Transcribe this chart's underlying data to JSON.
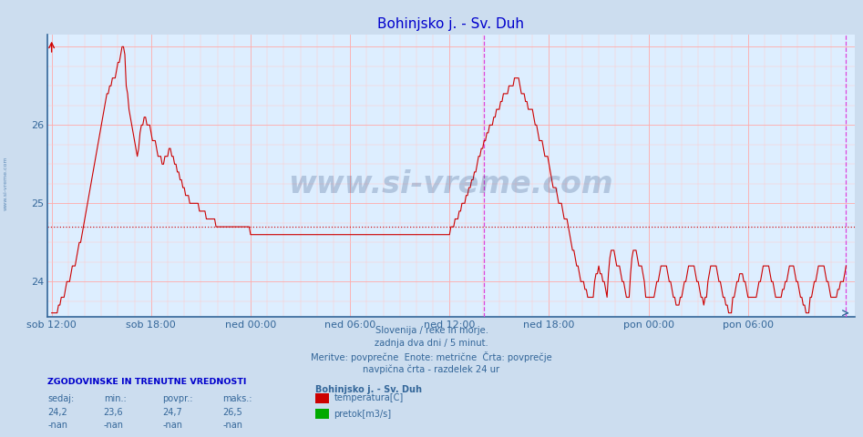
{
  "title": "Bohinjsko j. - Sv. Duh",
  "title_color": "#0000cc",
  "bg_color": "#ccddef",
  "plot_bg_color": "#ddeeff",
  "line_color": "#cc0000",
  "avg_line_color": "#cc0000",
  "avg_value": 24.7,
  "vline_color": "#dd44dd",
  "grid_color_major": "#ffaaaa",
  "grid_color_minor": "#ffcccc",
  "ymin": 23.55,
  "ymax": 27.15,
  "yticks": [
    24,
    25,
    26
  ],
  "tick_label_color": "#336699",
  "xtick_labels": [
    "sob 12:00",
    "sob 18:00",
    "ned 00:00",
    "ned 06:00",
    "ned 12:00",
    "ned 18:00",
    "pon 00:00",
    "pon 06:00"
  ],
  "footer_lines": [
    "Slovenija / reke in morje.",
    "zadnja dva dni / 5 minut.",
    "Meritve: povprečne  Enote: metrične  Črta: povprečje",
    "navpična črta - razdelek 24 ur"
  ],
  "watermark": "www.si-vreme.com",
  "watermark_color": "#1a3a6e",
  "watermark_alpha": 0.22,
  "sidebar_text": "www.si-vreme.com",
  "legend_station": "Bohinjsko j. - Sv. Duh",
  "legend_items": [
    {
      "label": "temperatura[C]",
      "color": "#cc0000"
    },
    {
      "label": "pretok[m3/s]",
      "color": "#00aa00"
    }
  ],
  "stats_headers": [
    "sedaj:",
    "min.:",
    "povpr.:",
    "maks.:"
  ],
  "stats_temp": [
    "24,2",
    "23,6",
    "24,7",
    "26,5"
  ],
  "stats_flow": [
    "-nan",
    "-nan",
    "-nan",
    "-nan"
  ],
  "n_points": 576,
  "xtick_positions": [
    0,
    72,
    144,
    216,
    288,
    360,
    432,
    504
  ],
  "vline_x1": 313,
  "vline_x2": 575
}
